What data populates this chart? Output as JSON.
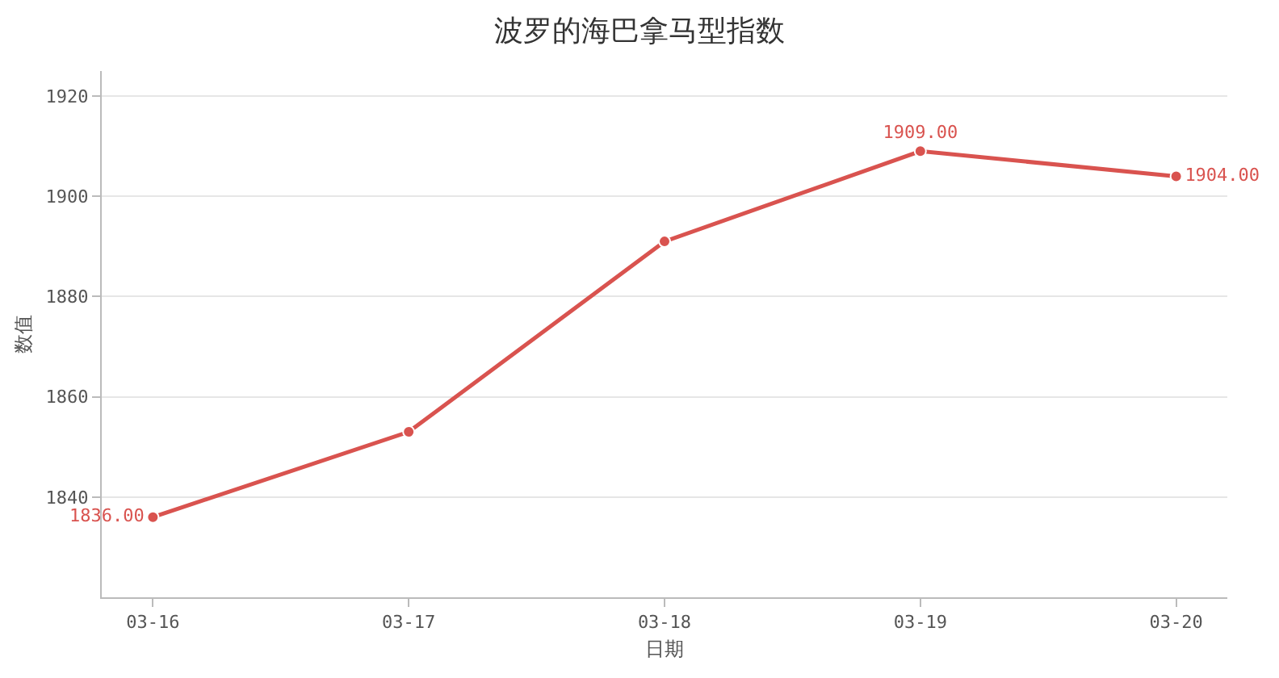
{
  "chart_data": {
    "type": "line",
    "title": "波罗的海巴拿马型指数",
    "xlabel": "日期",
    "ylabel": "数值",
    "categories": [
      "03-16",
      "03-17",
      "03-18",
      "03-19",
      "03-20"
    ],
    "series": [
      {
        "color": "#d9534f",
        "values": [
          1836,
          1853,
          1891,
          1909,
          1904
        ],
        "value_labels": [
          "1836.00",
          null,
          null,
          "1909.00",
          "1904.00"
        ]
      }
    ],
    "ylim": [
      1820,
      1925
    ],
    "yticks": [
      1840,
      1860,
      1880,
      1900,
      1920
    ],
    "grid": "y",
    "marker": "circle",
    "line_style": "solid"
  }
}
